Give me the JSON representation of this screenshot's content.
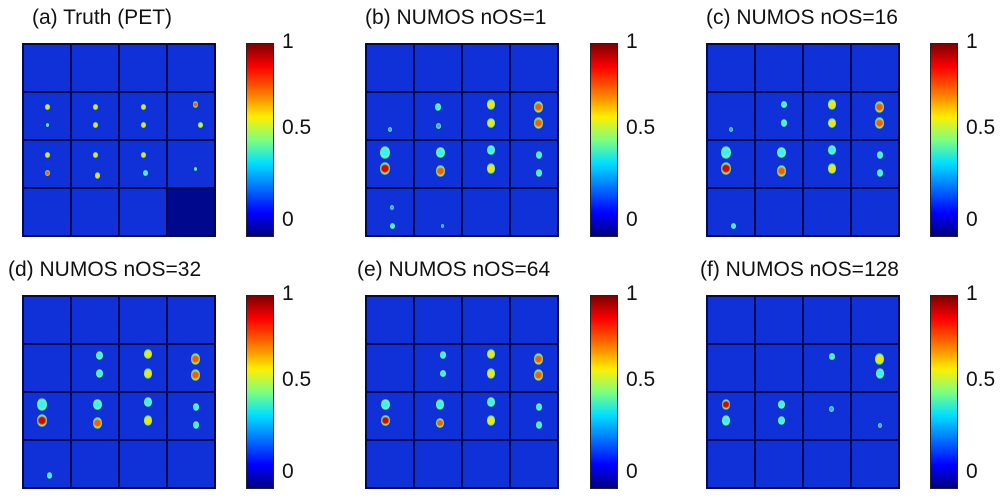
{
  "panels": [
    {
      "title": "(a) Truth (PET)",
      "ticks": [
        "1",
        "0.5",
        "0"
      ]
    },
    {
      "title": "(b) NUMOS nOS=1",
      "ticks": [
        "1",
        "0.5",
        "0"
      ]
    },
    {
      "title": "(c) NUMOS nOS=16",
      "ticks": [
        "1",
        "0.5",
        "0"
      ]
    },
    {
      "title": "(d) NUMOS nOS=32",
      "ticks": [
        "1",
        "0.5",
        "0"
      ]
    },
    {
      "title": "(e) NUMOS nOS=64",
      "ticks": [
        "1",
        "0.5",
        "0"
      ]
    },
    {
      "title": "(f) NUMOS nOS=128",
      "ticks": [
        "1",
        "0.5",
        "0"
      ]
    }
  ],
  "colormap": "jet",
  "colors": {
    "background": "#1030d8",
    "border": "#000a4c"
  }
}
